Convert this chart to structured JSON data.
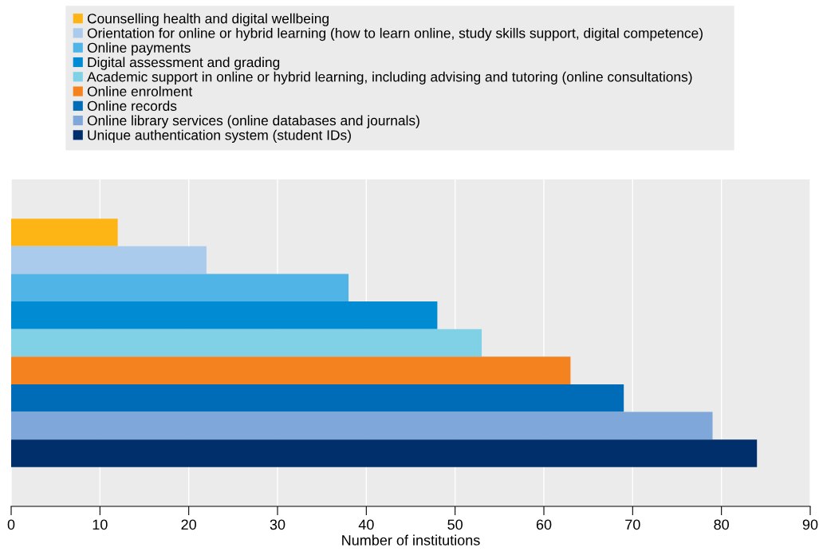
{
  "chart_data": {
    "type": "bar",
    "orientation": "horizontal",
    "categories": [
      null
    ],
    "xlabel": "Number of institutions",
    "xlim": [
      0,
      90
    ],
    "xticks": [
      0,
      10,
      20,
      30,
      40,
      50,
      60,
      70,
      80,
      90
    ],
    "grid": "x",
    "legend": "top",
    "series": [
      {
        "name": "Counselling health and digital wellbeing",
        "color": "#fdb515",
        "values": [
          12
        ]
      },
      {
        "name": "Orientation for online or hybrid learning (how to learn online, study skills support, digital competence)",
        "color": "#abcbec",
        "values": [
          22
        ]
      },
      {
        "name": "Online payments",
        "color": "#50b5e6",
        "values": [
          38
        ]
      },
      {
        "name": "Digital assessment and grading",
        "color": "#008bd2",
        "values": [
          48
        ]
      },
      {
        "name": "Academic support in online or hybrid learning, including advising and tutoring (online consultations)",
        "color": "#80d1e6",
        "values": [
          53
        ]
      },
      {
        "name": "Online enrolment",
        "color": "#f4821f",
        "values": [
          63
        ]
      },
      {
        "name": "Online records",
        "color": "#006bb6",
        "values": [
          69
        ]
      },
      {
        "name": "Online library services (online databases and journals)",
        "color": "#7fa7d9",
        "values": [
          79
        ]
      },
      {
        "name": "Unique authentication system (student IDs)",
        "color": "#002f6c",
        "values": [
          84
        ]
      }
    ]
  }
}
